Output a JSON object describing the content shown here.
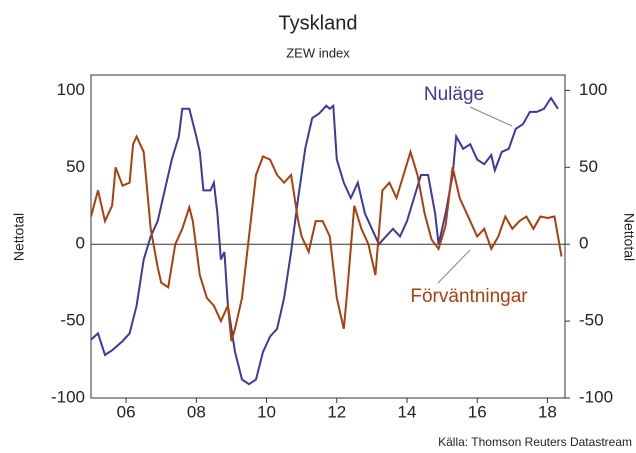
{
  "chart_data": {
    "type": "line",
    "title": "Tyskland",
    "subtitle": "ZEW index",
    "ylabel": "Nettotal",
    "y2label": "Nettotal",
    "source": "Källa: Thomson Reuters Datastream",
    "xlim": [
      2005,
      2018.5
    ],
    "xticks": [
      {
        "value": 2006,
        "label": "06"
      },
      {
        "value": 2008,
        "label": "08"
      },
      {
        "value": 2010,
        "label": "10"
      },
      {
        "value": 2012,
        "label": "12"
      },
      {
        "value": 2014,
        "label": "14"
      },
      {
        "value": 2016,
        "label": "16"
      },
      {
        "value": 2018,
        "label": "18"
      }
    ],
    "ylim": [
      -100,
      110
    ],
    "yticks": [
      -100,
      -50,
      0,
      50,
      100
    ],
    "y2lim": [
      -100,
      110
    ],
    "y2ticks": [
      -100,
      -50,
      0,
      50,
      100
    ],
    "series": [
      {
        "name": "Nuläge",
        "color": "#3b3b9a",
        "x": [
          2005.0,
          2005.2,
          2005.4,
          2005.6,
          2005.9,
          2006.1,
          2006.3,
          2006.5,
          2006.7,
          2006.9,
          2007.1,
          2007.3,
          2007.5,
          2007.6,
          2007.8,
          2008.0,
          2008.1,
          2008.2,
          2008.4,
          2008.5,
          2008.6,
          2008.7,
          2008.8,
          2008.9,
          2009.1,
          2009.3,
          2009.5,
          2009.7,
          2009.9,
          2010.1,
          2010.3,
          2010.5,
          2010.7,
          2010.9,
          2011.1,
          2011.3,
          2011.5,
          2011.7,
          2011.8,
          2011.9,
          2012.0,
          2012.2,
          2012.4,
          2012.6,
          2012.8,
          2013.0,
          2013.2,
          2013.4,
          2013.6,
          2013.8,
          2014.0,
          2014.2,
          2014.4,
          2014.6,
          2014.8,
          2014.9,
          2015.1,
          2015.3,
          2015.4,
          2015.6,
          2015.8,
          2016.0,
          2016.2,
          2016.4,
          2016.5,
          2016.7,
          2016.9,
          2017.1,
          2017.3,
          2017.5,
          2017.7,
          2017.9,
          2018.1,
          2018.3
        ],
        "values": [
          -62,
          -58,
          -72,
          -69,
          -63,
          -58,
          -40,
          -10,
          5,
          15,
          35,
          55,
          70,
          88,
          88,
          70,
          60,
          35,
          35,
          40,
          20,
          -10,
          -5,
          -40,
          -70,
          -88,
          -91,
          -88,
          -70,
          -60,
          -55,
          -35,
          -5,
          30,
          62,
          82,
          85,
          90,
          88,
          90,
          55,
          40,
          30,
          40,
          20,
          10,
          0,
          5,
          10,
          5,
          15,
          30,
          45,
          45,
          20,
          0,
          20,
          45,
          70,
          62,
          65,
          55,
          52,
          58,
          48,
          60,
          62,
          75,
          78,
          86,
          86,
          88,
          95,
          88
        ]
      },
      {
        "name": "Förväntningar",
        "color": "#a8400f",
        "x": [
          2005.0,
          2005.2,
          2005.4,
          2005.6,
          2005.7,
          2005.9,
          2006.1,
          2006.2,
          2006.3,
          2006.5,
          2006.7,
          2006.9,
          2007.0,
          2007.2,
          2007.4,
          2007.6,
          2007.8,
          2007.9,
          2008.1,
          2008.3,
          2008.5,
          2008.7,
          2008.9,
          2009.0,
          2009.1,
          2009.3,
          2009.5,
          2009.7,
          2009.9,
          2010.1,
          2010.3,
          2010.5,
          2010.7,
          2010.9,
          2011.0,
          2011.2,
          2011.4,
          2011.6,
          2011.8,
          2012.0,
          2012.2,
          2012.3,
          2012.5,
          2012.7,
          2012.9,
          2013.1,
          2013.3,
          2013.5,
          2013.7,
          2013.9,
          2014.1,
          2014.3,
          2014.5,
          2014.7,
          2014.9,
          2015.1,
          2015.3,
          2015.5,
          2015.8,
          2016.0,
          2016.2,
          2016.4,
          2016.6,
          2016.8,
          2017.0,
          2017.2,
          2017.4,
          2017.6,
          2017.8,
          2018.0,
          2018.2,
          2018.4
        ],
        "values": [
          18,
          35,
          15,
          25,
          50,
          38,
          40,
          65,
          70,
          60,
          10,
          -15,
          -25,
          -28,
          0,
          10,
          24,
          15,
          -20,
          -35,
          -40,
          -50,
          -40,
          -63,
          -55,
          -35,
          5,
          45,
          57,
          55,
          45,
          40,
          45,
          15,
          5,
          -5,
          15,
          15,
          5,
          -35,
          -55,
          -30,
          25,
          10,
          0,
          -20,
          35,
          40,
          30,
          45,
          60,
          45,
          20,
          3,
          -3,
          12,
          50,
          30,
          15,
          5,
          10,
          -3,
          5,
          18,
          10,
          15,
          18,
          10,
          18,
          17,
          18,
          -8
        ]
      }
    ]
  }
}
